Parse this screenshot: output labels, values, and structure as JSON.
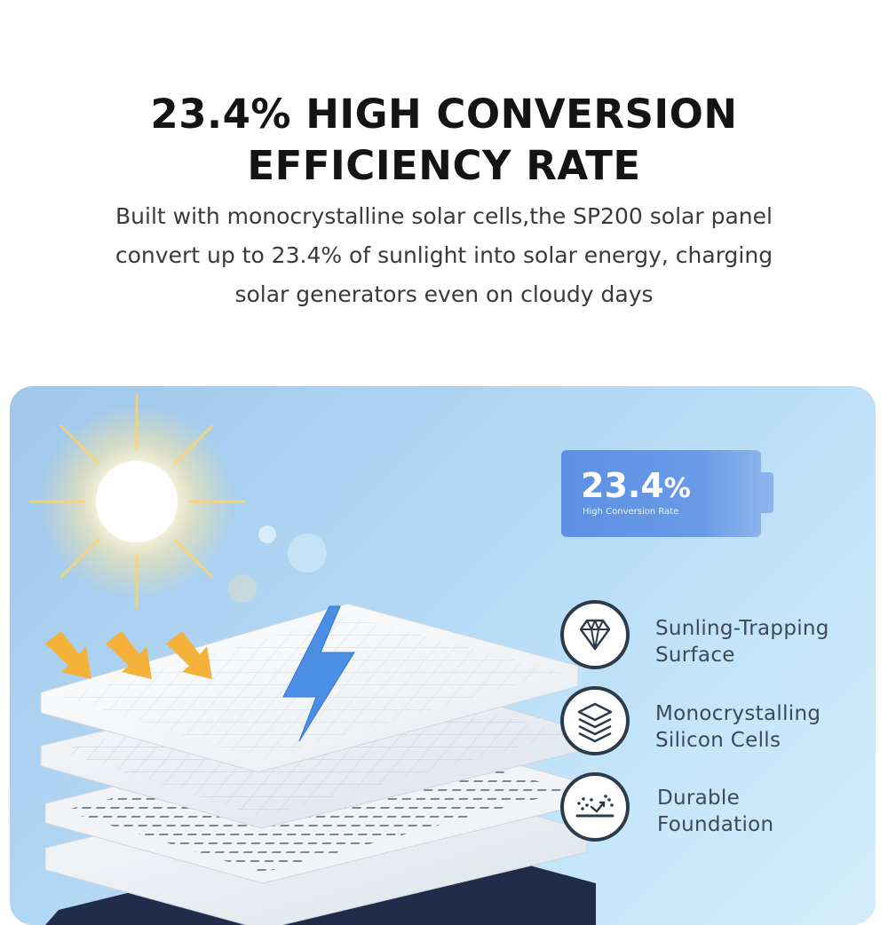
{
  "headline": {
    "line1": "23.4% HIGH CONVERSION",
    "line2": "EFFICIENCY RATE"
  },
  "description": {
    "line1": "Built with monocrystalline solar cells,the SP200 solar panel",
    "line2": "convert up to 23.4% of sunlight into solar energy, charging",
    "line3": "solar generators even on cloudy days"
  },
  "badge": {
    "value": "23.4",
    "unit": "%",
    "caption": "High Conversion Rate"
  },
  "features": [
    {
      "icon": "diamond-icon",
      "line1": "Sunling-Trapping",
      "line2": "Surface"
    },
    {
      "icon": "layers-icon",
      "line1": "Monocrystalling",
      "line2": "Silicon Cells"
    },
    {
      "icon": "foundation-icon",
      "line1": "Durable",
      "line2": "Foundation"
    }
  ],
  "colors": {
    "panel_sky": "#b4d9f5",
    "badge": "#6a9be8",
    "arrow": "#f4b23a",
    "bolt": "#4a8ee6",
    "icon_ring": "#2c3a4a"
  }
}
